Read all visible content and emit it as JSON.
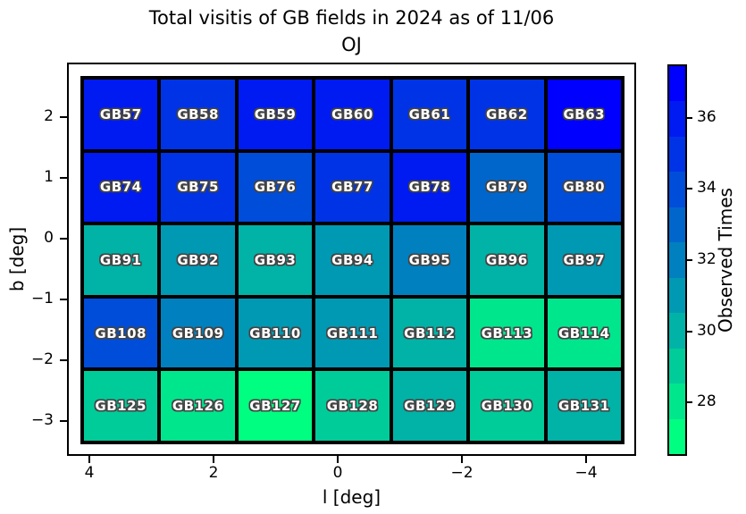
{
  "title": {
    "line1": "Total visitis of GB fields in 2024 as of 11/06",
    "line2": "OJ"
  },
  "chart_data": {
    "type": "heatmap",
    "title": "Total visitis of GB fields in 2024 as of 11/06 OJ",
    "xlabel": "l [deg]",
    "ylabel": "b [deg]",
    "x_axis_inverted": true,
    "x_tick_labels": [
      "4",
      "2",
      "0",
      "−2",
      "−4"
    ],
    "y_tick_labels": [
      "2",
      "1",
      "0",
      "−1",
      "−2",
      "−3"
    ],
    "rows": [
      {
        "b_approx": 2,
        "cells": [
          {
            "field": "GB57",
            "value": 36
          },
          {
            "field": "GB58",
            "value": 35
          },
          {
            "field": "GB59",
            "value": 36
          },
          {
            "field": "GB60",
            "value": 36
          },
          {
            "field": "GB61",
            "value": 35
          },
          {
            "field": "GB62",
            "value": 35
          },
          {
            "field": "GB63",
            "value": 37
          }
        ]
      },
      {
        "b_approx": 1,
        "cells": [
          {
            "field": "GB74",
            "value": 36
          },
          {
            "field": "GB75",
            "value": 35
          },
          {
            "field": "GB76",
            "value": 34
          },
          {
            "field": "GB77",
            "value": 35
          },
          {
            "field": "GB78",
            "value": 36
          },
          {
            "field": "GB79",
            "value": 33
          },
          {
            "field": "GB80",
            "value": 34
          }
        ]
      },
      {
        "b_approx": 0,
        "cells": [
          {
            "field": "GB91",
            "value": 30
          },
          {
            "field": "GB92",
            "value": 31
          },
          {
            "field": "GB93",
            "value": 30
          },
          {
            "field": "GB94",
            "value": 31
          },
          {
            "field": "GB95",
            "value": 32
          },
          {
            "field": "GB96",
            "value": 30
          },
          {
            "field": "GB97",
            "value": 31
          }
        ]
      },
      {
        "b_approx": -1,
        "cells": [
          {
            "field": "GB108",
            "value": 34
          },
          {
            "field": "GB109",
            "value": 32
          },
          {
            "field": "GB110",
            "value": 31
          },
          {
            "field": "GB111",
            "value": 31
          },
          {
            "field": "GB112",
            "value": 30
          },
          {
            "field": "GB113",
            "value": 28
          },
          {
            "field": "GB114",
            "value": 28
          }
        ]
      },
      {
        "b_approx": -2,
        "cells": [
          {
            "field": "GB125",
            "value": 29
          },
          {
            "field": "GB126",
            "value": 28
          },
          {
            "field": "GB127",
            "value": 27
          },
          {
            "field": "GB128",
            "value": 29
          },
          {
            "field": "GB129",
            "value": 30
          },
          {
            "field": "GB130",
            "value": 29
          },
          {
            "field": "GB131",
            "value": 30
          }
        ]
      }
    ],
    "colorbar": {
      "label": "Observed Times",
      "ticks": [
        36,
        34,
        32,
        30,
        28
      ],
      "range": [
        26.5,
        37.5
      ],
      "levels": [
        {
          "value": 37,
          "color": "#0000FF"
        },
        {
          "value": 36,
          "color": "#001AF2"
        },
        {
          "value": 35,
          "color": "#0033E6"
        },
        {
          "value": 34,
          "color": "#004DD9"
        },
        {
          "value": 33,
          "color": "#0066CC"
        },
        {
          "value": 32,
          "color": "#0080BF"
        },
        {
          "value": 31,
          "color": "#0099B3"
        },
        {
          "value": 30,
          "color": "#00B3A6"
        },
        {
          "value": 29,
          "color": "#00CC99"
        },
        {
          "value": 28,
          "color": "#00E68C"
        },
        {
          "value": 27,
          "color": "#00FF80"
        }
      ]
    }
  }
}
